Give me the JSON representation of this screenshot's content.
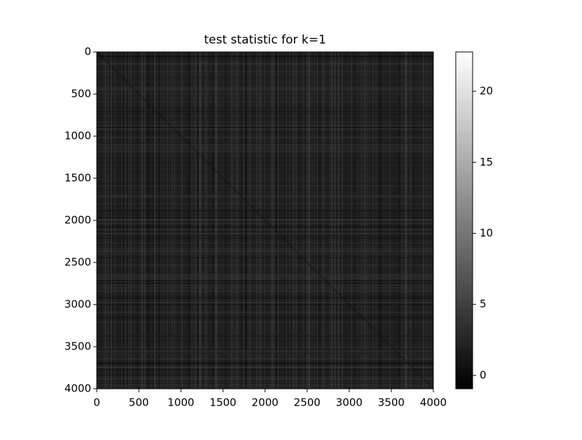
{
  "chart_data": {
    "type": "heatmap",
    "title": "test statistic for k=1",
    "xlim": [
      0,
      4000
    ],
    "xticks": [
      0,
      500,
      1000,
      1500,
      2000,
      2500,
      3000,
      3500,
      4000
    ],
    "ylim": [
      0,
      4000
    ],
    "y_inverted": true,
    "yticks": [
      0,
      500,
      1000,
      1500,
      2000,
      2500,
      3000,
      3500,
      4000
    ],
    "colormap": "gray",
    "colorbar": {
      "lim": [
        -0.94,
        22.77
      ],
      "ticks": [
        0,
        5,
        10,
        15,
        20
      ]
    }
  }
}
